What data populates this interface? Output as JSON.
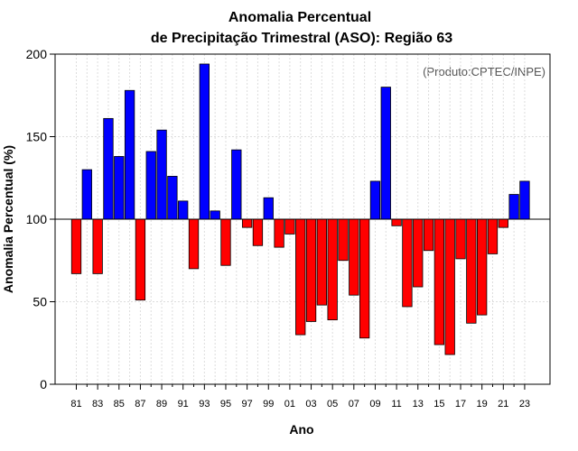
{
  "chart_data": {
    "type": "bar",
    "title": "Anomalia Percentual",
    "subtitle": "de Precipitação Trimestral (ASO): Região 63",
    "xlabel": "Ano",
    "ylabel": "Anomalia Percentual (%)",
    "credit": "(Produto:CPTEC/INPE)",
    "ylim": [
      0,
      200
    ],
    "yticks": [
      "0",
      "50",
      "100",
      "150",
      "200"
    ],
    "baseline": 100,
    "colors": {
      "above": "#0000ff",
      "below": "#ff0000"
    },
    "grid": true,
    "categories": [
      "81",
      "82",
      "83",
      "84",
      "85",
      "86",
      "87",
      "88",
      "89",
      "90",
      "91",
      "92",
      "93",
      "94",
      "95",
      "96",
      "97",
      "98",
      "99",
      "00",
      "01",
      "02",
      "03",
      "04",
      "05",
      "06",
      "07",
      "08",
      "09",
      "10",
      "11",
      "12",
      "13",
      "14",
      "15",
      "16",
      "17",
      "18",
      "19",
      "20",
      "21",
      "22",
      "23"
    ],
    "xtick_labels": [
      "81",
      "83",
      "85",
      "87",
      "89",
      "91",
      "93",
      "95",
      "97",
      "99",
      "01",
      "03",
      "05",
      "07",
      "09",
      "11",
      "13",
      "15",
      "17",
      "19",
      "21",
      "23"
    ],
    "values": [
      67,
      130,
      67,
      161,
      138,
      178,
      51,
      141,
      154,
      126,
      111,
      70,
      194,
      105,
      72,
      142,
      95,
      84,
      113,
      83,
      91,
      30,
      38,
      48,
      39,
      75,
      54,
      28,
      123,
      180,
      96,
      47,
      59,
      81,
      24,
      18,
      76,
      37,
      42,
      79,
      95,
      115,
      123
    ]
  }
}
